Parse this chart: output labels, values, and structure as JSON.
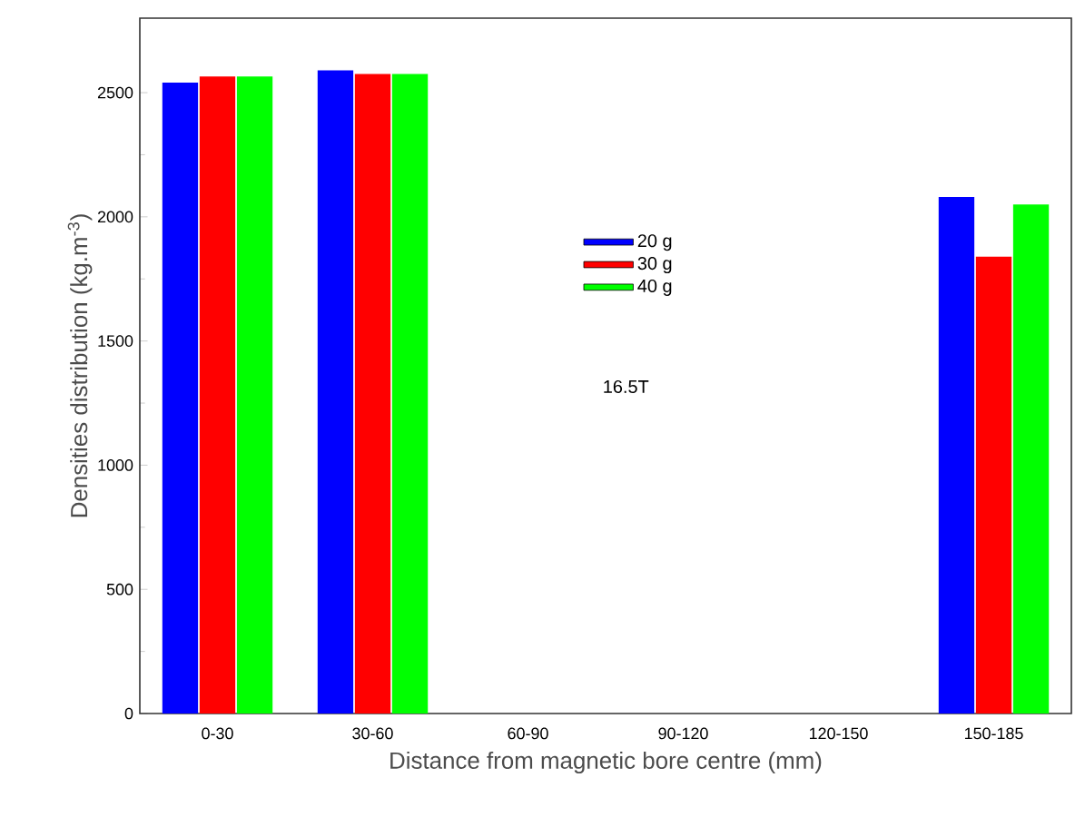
{
  "chart_data": {
    "type": "bar",
    "xlabel": "Distance  from magnetic  bore centre (mm)",
    "ylabel": "Densities distribution  (kg.m$^{-3}$)",
    "categories": [
      "0-30",
      "30-60",
      "60-90",
      "90-120",
      "120-150",
      "150-185"
    ],
    "series": [
      {
        "name": "20 g",
        "color": "#0000ff",
        "values": [
          2540,
          2590,
          null,
          null,
          null,
          2080
        ]
      },
      {
        "name": "30 g",
        "color": "#ff0000",
        "values": [
          2565,
          2575,
          null,
          null,
          null,
          1840
        ]
      },
      {
        "name": "40 g",
        "color": "#00ff00",
        "values": [
          2565,
          2575,
          null,
          null,
          null,
          2050
        ]
      }
    ],
    "ylim": [
      0,
      2800
    ],
    "yticks": [
      0,
      500,
      1000,
      1500,
      2000,
      2500
    ],
    "legend": "center",
    "grid": false,
    "annotations": [
      "16.5T"
    ]
  }
}
